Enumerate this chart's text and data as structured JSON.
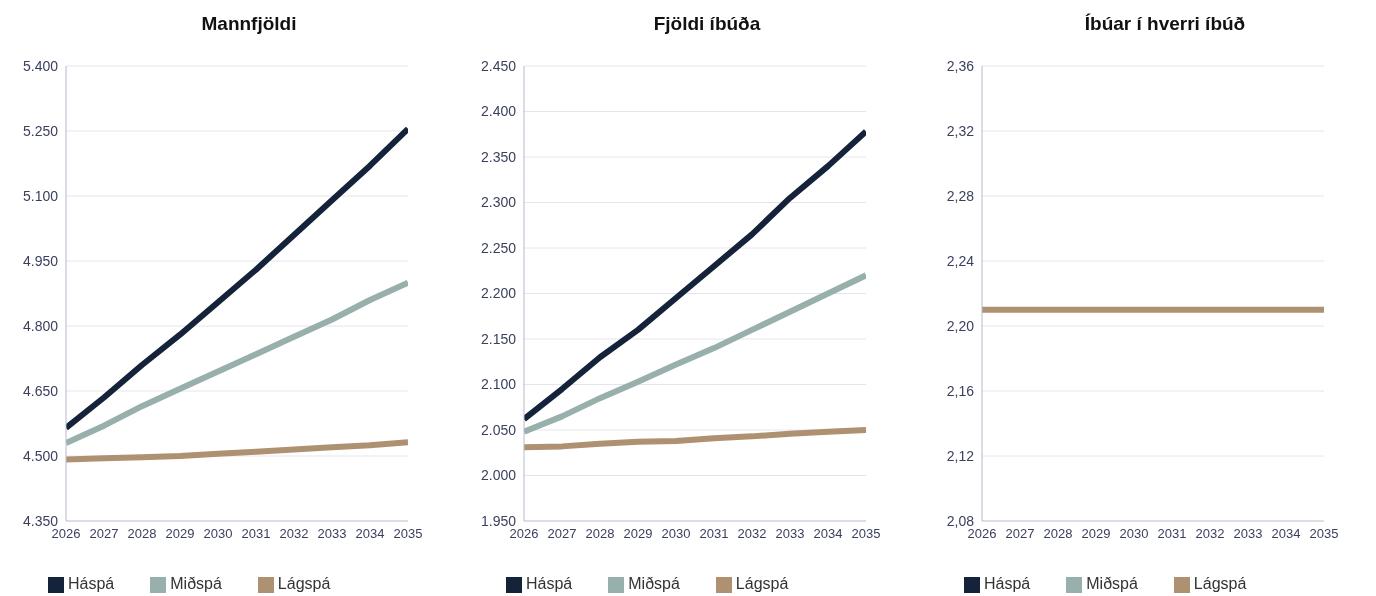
{
  "chart_data": [
    {
      "type": "line",
      "title": "Mannfjöldi",
      "x": [
        2026,
        2027,
        2028,
        2029,
        2030,
        2031,
        2032,
        2033,
        2034,
        2035
      ],
      "xlim": [
        2026,
        2035
      ],
      "xticks": [
        2026,
        2027,
        2028,
        2029,
        2030,
        2031,
        2032,
        2033,
        2034,
        2035
      ],
      "ylim": [
        4350,
        5400
      ],
      "yticks": [
        {
          "value": 4350,
          "label": "4.350"
        },
        {
          "value": 4500,
          "label": "4.500"
        },
        {
          "value": 4650,
          "label": "4.650"
        },
        {
          "value": 4800,
          "label": "4.800"
        },
        {
          "value": 4950,
          "label": "4.950"
        },
        {
          "value": 5100,
          "label": "5.100"
        },
        {
          "value": 5250,
          "label": "5.250"
        },
        {
          "value": 5400,
          "label": "5.400"
        }
      ],
      "grid": "y",
      "legend": "bottom",
      "series": [
        {
          "name": "Háspá",
          "color": "#14233a",
          "values": [
            4565,
            4635,
            4710,
            4780,
            4855,
            4930,
            5010,
            5090,
            5170,
            5255
          ]
        },
        {
          "name": "Miðspá",
          "color": "#97b0ab",
          "values": [
            4530,
            4570,
            4615,
            4655,
            4695,
            4735,
            4775,
            4815,
            4860,
            4900
          ]
        },
        {
          "name": "Lágspá",
          "color": "#ae9170",
          "values": [
            4492,
            4495,
            4497,
            4500,
            4505,
            4510,
            4515,
            4520,
            4525,
            4532
          ]
        }
      ]
    },
    {
      "type": "line",
      "title": "Fjöldi íbúða",
      "x": [
        2026,
        2027,
        2028,
        2029,
        2030,
        2031,
        2032,
        2033,
        2034,
        2035
      ],
      "xlim": [
        2026,
        2035
      ],
      "xticks": [
        2026,
        2027,
        2028,
        2029,
        2030,
        2031,
        2032,
        2033,
        2034,
        2035
      ],
      "ylim": [
        1950,
        2450
      ],
      "yticks": [
        {
          "value": 1950,
          "label": "1.950"
        },
        {
          "value": 2000,
          "label": "2.000"
        },
        {
          "value": 2050,
          "label": "2.050"
        },
        {
          "value": 2100,
          "label": "2.100"
        },
        {
          "value": 2150,
          "label": "2.150"
        },
        {
          "value": 2200,
          "label": "2.200"
        },
        {
          "value": 2250,
          "label": "2.250"
        },
        {
          "value": 2300,
          "label": "2.300"
        },
        {
          "value": 2350,
          "label": "2.350"
        },
        {
          "value": 2400,
          "label": "2.400"
        },
        {
          "value": 2450,
          "label": "2.450"
        }
      ],
      "grid": "y",
      "legend": "bottom",
      "series": [
        {
          "name": "Háspá",
          "color": "#14233a",
          "values": [
            2062,
            2095,
            2130,
            2160,
            2195,
            2230,
            2265,
            2305,
            2340,
            2378
          ]
        },
        {
          "name": "Miðspá",
          "color": "#97b0ab",
          "values": [
            2048,
            2065,
            2085,
            2103,
            2122,
            2140,
            2160,
            2180,
            2200,
            2220
          ]
        },
        {
          "name": "Lágspá",
          "color": "#ae9170",
          "values": [
            2031,
            2032,
            2035,
            2037,
            2038,
            2041,
            2043,
            2046,
            2048,
            2050
          ]
        }
      ]
    },
    {
      "type": "line",
      "title": "Íbúar í hverri íbúð",
      "x": [
        2026,
        2027,
        2028,
        2029,
        2030,
        2031,
        2032,
        2033,
        2034,
        2035
      ],
      "xlim": [
        2026,
        2035
      ],
      "xticks": [
        2026,
        2027,
        2028,
        2029,
        2030,
        2031,
        2032,
        2033,
        2034,
        2035
      ],
      "ylim": [
        2.08,
        2.36
      ],
      "yticks": [
        {
          "value": 2.08,
          "label": "2,08"
        },
        {
          "value": 2.12,
          "label": "2,12"
        },
        {
          "value": 2.16,
          "label": "2,16"
        },
        {
          "value": 2.2,
          "label": "2,20"
        },
        {
          "value": 2.24,
          "label": "2,24"
        },
        {
          "value": 2.28,
          "label": "2,28"
        },
        {
          "value": 2.32,
          "label": "2,32"
        },
        {
          "value": 2.36,
          "label": "2,36"
        }
      ],
      "grid": "y",
      "legend": "bottom",
      "series": [
        {
          "name": "Háspá",
          "color": "#14233a",
          "values": [
            null,
            null,
            null,
            null,
            null,
            null,
            null,
            null,
            null,
            null
          ]
        },
        {
          "name": "Miðspá",
          "color": "#97b0ab",
          "values": [
            null,
            null,
            null,
            null,
            null,
            null,
            null,
            null,
            null,
            null
          ]
        },
        {
          "name": "Lágspá",
          "color": "#ae9170",
          "values": [
            2.21,
            2.21,
            2.21,
            2.21,
            2.21,
            2.21,
            2.21,
            2.21,
            2.21,
            2.21
          ]
        }
      ]
    }
  ]
}
